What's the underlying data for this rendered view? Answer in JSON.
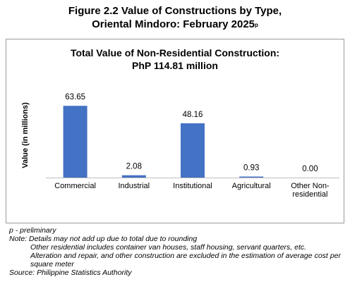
{
  "figure": {
    "title_line1": "Figure 2.2 Value of Constructions by Type,",
    "title_line2": "Oriental Mindoro: February 2025",
    "title_superscript": "p"
  },
  "chart_data": {
    "type": "bar",
    "title": "Total Value of Non-Residential Construction:",
    "subtitle": "PhP 114.81 million",
    "xlabel": "",
    "ylabel": "Value (in millions)",
    "ylim": [
      0,
      75
    ],
    "grid": false,
    "legend": "none",
    "bar_color": "#4472C4",
    "categories": [
      [
        "Commercial"
      ],
      [
        "Industrial"
      ],
      [
        "Institutional"
      ],
      [
        "Agricultural"
      ],
      [
        "Other Non-",
        "residential"
      ]
    ],
    "values": [
      63.65,
      2.08,
      48.16,
      0.93,
      0.0
    ],
    "data_labels": [
      "63.65",
      "2.08",
      "48.16",
      "0.93",
      "0.00"
    ]
  },
  "notes": {
    "preliminary": "p - preliminary",
    "note_main": "Note: Details may not add up due to total due to rounding",
    "note_line2": "Other residential includes container van houses, staff housing, servant quarters, etc.",
    "note_line3": "Alteration and repair, and other construction are excluded in the estimation of average cost per square meter",
    "source": "Source: Philippine Statistics Authority"
  }
}
